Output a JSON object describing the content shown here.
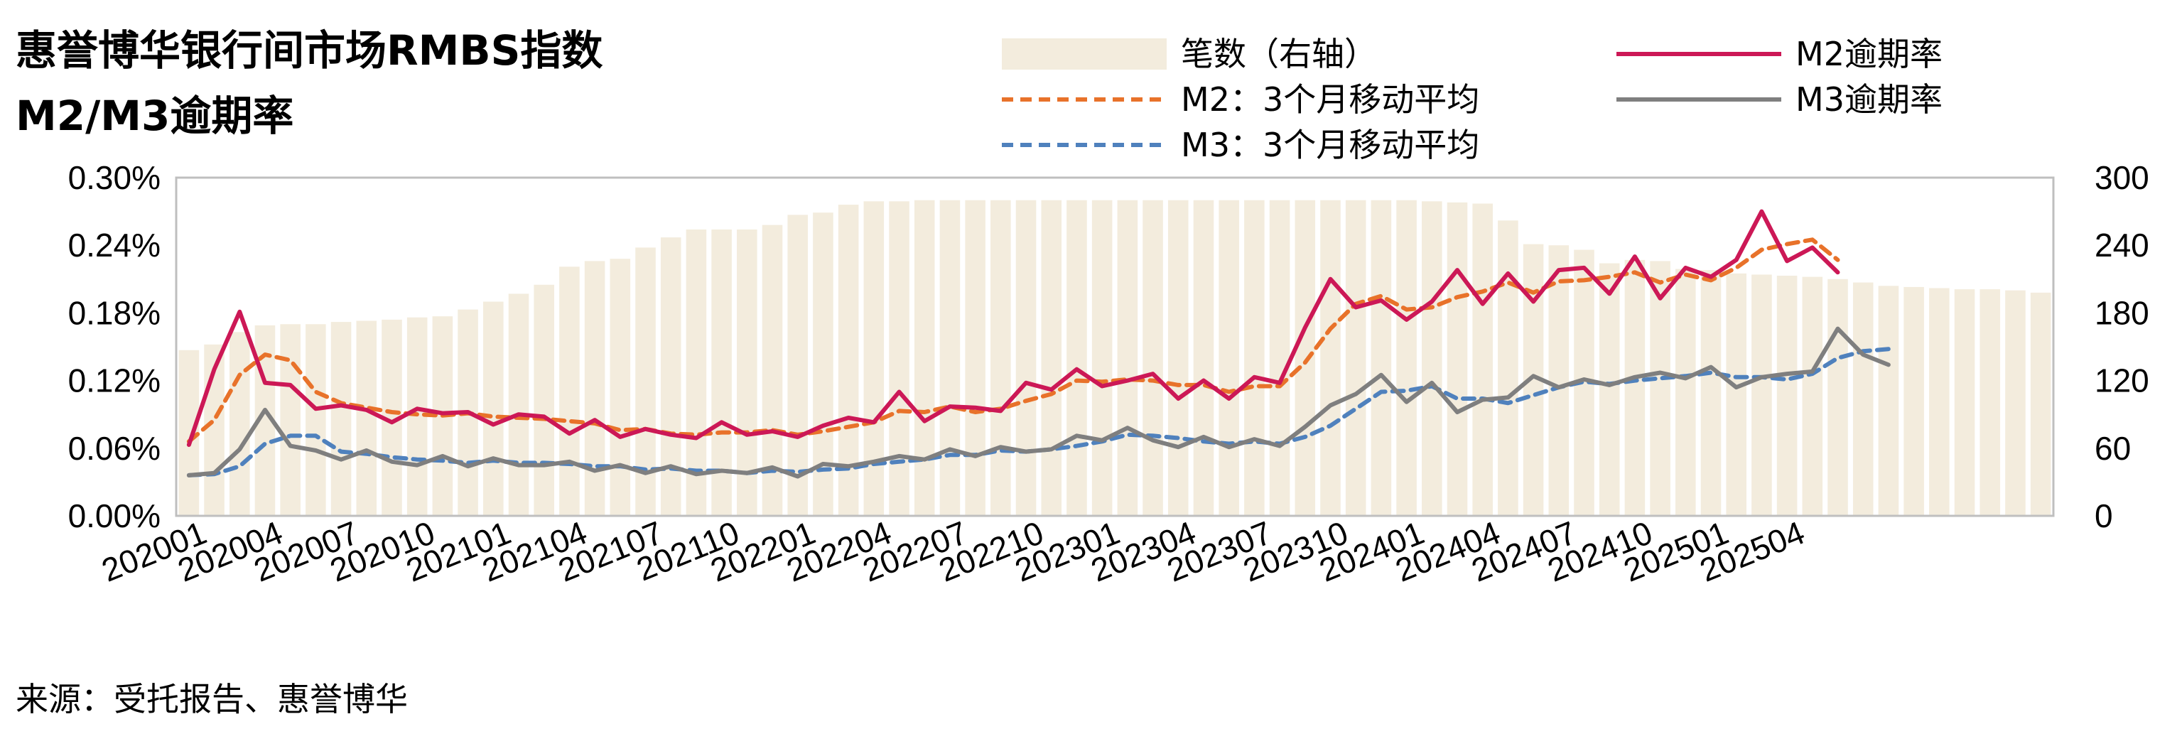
{
  "title_line1": "惠誉博华银行间市场RMBS指数",
  "title_line2": "M2/M3逾期率",
  "source": "来源：受托报告、惠誉博华",
  "colors": {
    "bars": "#F3ECDD",
    "m2": "#CC1856",
    "m2_ma": "#E8722A",
    "m3": "#7F7F7F",
    "m3_ma": "#4F81BD",
    "axis": "#BFBFBF"
  },
  "chart_data": {
    "type": "bar+line",
    "x_tick_labels": [
      "202001",
      "202004",
      "202007",
      "202010",
      "202101",
      "202104",
      "202107",
      "202110",
      "202201",
      "202204",
      "202207",
      "202210",
      "202301",
      "202304",
      "202307",
      "202310",
      "202401",
      "202404",
      "202407",
      "202410",
      "202501",
      "202504"
    ],
    "y_left": {
      "min": 0,
      "max": 0.3,
      "ticks": [
        "0.00%",
        "0.06%",
        "0.12%",
        "0.18%",
        "0.24%",
        "0.30%"
      ]
    },
    "y_right": {
      "min": 0,
      "max": 300,
      "ticks": [
        "0",
        "60",
        "120",
        "180",
        "240",
        "300"
      ]
    },
    "legend": [
      "笔数（右轴）",
      "M2：3个月移动平均",
      "M3：3个月移动平均",
      "M2逾期率",
      "M3逾期率"
    ],
    "series": [
      {
        "name": "笔数（右轴）",
        "type": "bar",
        "axis": "right",
        "values": [
          147,
          152,
          163,
          169,
          170,
          170,
          172,
          173,
          174,
          176,
          177,
          183,
          190,
          197,
          205,
          221,
          226,
          228,
          238,
          247,
          254,
          254,
          254,
          258,
          267,
          269,
          276,
          279,
          279,
          280,
          280,
          280,
          280,
          280,
          280,
          280,
          280,
          280,
          280,
          280,
          280,
          280,
          280,
          280,
          280,
          280,
          280,
          280,
          280,
          279,
          278,
          277,
          262,
          241,
          240,
          236,
          224,
          227,
          226,
          219,
          218,
          215,
          214,
          213,
          212,
          210,
          207,
          204,
          203,
          202,
          201,
          201,
          200,
          198
        ]
      },
      {
        "name": "M2逾期率",
        "type": "line",
        "axis": "left",
        "values": [
          0.063,
          0.13,
          0.181,
          0.118,
          0.116,
          0.095,
          0.098,
          0.094,
          0.083,
          0.095,
          0.091,
          0.092,
          0.081,
          0.09,
          0.088,
          0.073,
          0.085,
          0.07,
          0.077,
          0.072,
          0.069,
          0.083,
          0.072,
          0.075,
          0.07,
          0.08,
          0.087,
          0.083,
          0.11,
          0.084,
          0.097,
          0.096,
          0.093,
          0.118,
          0.112,
          0.13,
          0.115,
          0.12,
          0.126,
          0.104,
          0.12,
          0.104,
          0.123,
          0.118,
          0.167,
          0.21,
          0.185,
          0.191,
          0.174,
          0.19,
          0.218,
          0.188,
          0.215,
          0.19,
          0.218,
          0.22,
          0.197,
          0.23,
          0.193,
          0.22,
          0.212,
          0.227,
          0.27,
          0.226,
          0.238,
          0.216
        ]
      },
      {
        "name": "M2：3个月移动平均",
        "type": "line",
        "axis": "left",
        "dashed": true,
        "values": [
          0.066,
          0.085,
          0.125,
          0.143,
          0.138,
          0.11,
          0.1,
          0.096,
          0.092,
          0.09,
          0.089,
          0.091,
          0.088,
          0.087,
          0.086,
          0.084,
          0.082,
          0.076,
          0.077,
          0.073,
          0.072,
          0.074,
          0.074,
          0.076,
          0.072,
          0.075,
          0.079,
          0.083,
          0.093,
          0.092,
          0.097,
          0.092,
          0.095,
          0.102,
          0.108,
          0.12,
          0.119,
          0.121,
          0.12,
          0.116,
          0.116,
          0.11,
          0.115,
          0.115,
          0.136,
          0.166,
          0.188,
          0.195,
          0.183,
          0.185,
          0.194,
          0.199,
          0.207,
          0.198,
          0.208,
          0.209,
          0.212,
          0.216,
          0.207,
          0.214,
          0.209,
          0.22,
          0.236,
          0.241,
          0.245,
          0.227
        ]
      },
      {
        "name": "M3逾期率",
        "type": "line",
        "axis": "left",
        "values": [
          0.036,
          0.038,
          0.059,
          0.094,
          0.062,
          0.058,
          0.05,
          0.058,
          0.048,
          0.045,
          0.053,
          0.044,
          0.051,
          0.045,
          0.045,
          0.048,
          0.04,
          0.045,
          0.038,
          0.044,
          0.037,
          0.04,
          0.038,
          0.043,
          0.035,
          0.046,
          0.044,
          0.048,
          0.053,
          0.05,
          0.059,
          0.053,
          0.061,
          0.057,
          0.059,
          0.071,
          0.067,
          0.078,
          0.067,
          0.061,
          0.07,
          0.061,
          0.068,
          0.062,
          0.079,
          0.098,
          0.108,
          0.125,
          0.101,
          0.118,
          0.092,
          0.103,
          0.105,
          0.124,
          0.114,
          0.121,
          0.116,
          0.123,
          0.127,
          0.122,
          0.132,
          0.114,
          0.123,
          0.126,
          0.128,
          0.166,
          0.143,
          0.134
        ]
      },
      {
        "name": "M3：3个月移动平均",
        "type": "line",
        "axis": "left",
        "dashed": true,
        "values": [
          0.036,
          0.037,
          0.044,
          0.064,
          0.071,
          0.071,
          0.057,
          0.055,
          0.052,
          0.05,
          0.049,
          0.047,
          0.049,
          0.047,
          0.047,
          0.046,
          0.044,
          0.044,
          0.041,
          0.042,
          0.04,
          0.04,
          0.038,
          0.04,
          0.039,
          0.041,
          0.042,
          0.046,
          0.048,
          0.05,
          0.054,
          0.054,
          0.058,
          0.057,
          0.059,
          0.062,
          0.066,
          0.072,
          0.071,
          0.069,
          0.066,
          0.064,
          0.066,
          0.064,
          0.07,
          0.08,
          0.095,
          0.11,
          0.111,
          0.115,
          0.104,
          0.104,
          0.1,
          0.107,
          0.114,
          0.119,
          0.117,
          0.12,
          0.122,
          0.124,
          0.127,
          0.123,
          0.123,
          0.121,
          0.126,
          0.14,
          0.146,
          0.148
        ]
      }
    ]
  }
}
